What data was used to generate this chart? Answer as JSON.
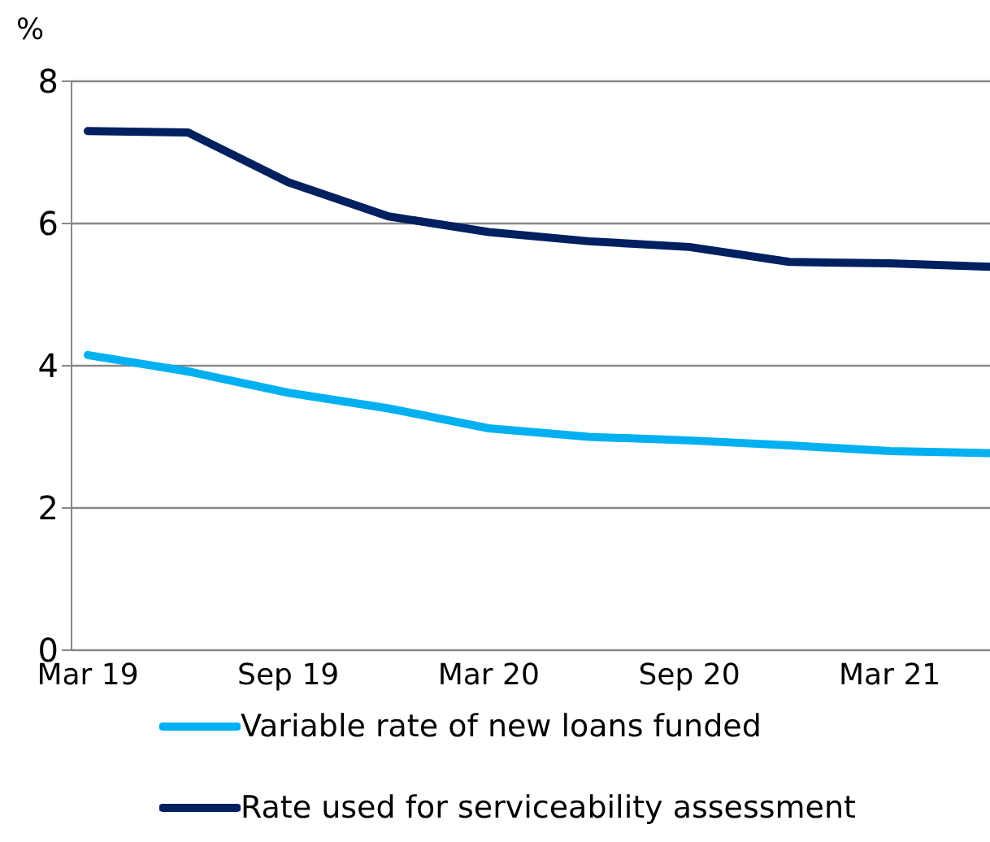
{
  "chart_data": {
    "type": "line",
    "ylabel": "%",
    "categories": [
      "Mar 19",
      null,
      "Sep 19",
      null,
      "Mar 20",
      null,
      "Sep 20",
      null,
      "Mar 21",
      null
    ],
    "series": [
      {
        "name": "Variable rate of new loans funded",
        "color": "#00b0f0",
        "values": [
          4.15,
          3.92,
          3.62,
          3.4,
          3.12,
          3.0,
          2.95,
          2.88,
          2.8,
          2.77
        ]
      },
      {
        "name": "Rate used for serviceability assessment",
        "color": "#002060",
        "values": [
          7.3,
          7.28,
          6.58,
          6.1,
          5.88,
          5.75,
          5.67,
          5.46,
          5.44,
          5.39
        ]
      }
    ],
    "ylim": [
      0,
      8
    ],
    "yticks": [
      0,
      2,
      4,
      6,
      8
    ],
    "grid": "y",
    "legend": "bottom",
    "marker": "none",
    "line_style": "solid"
  }
}
